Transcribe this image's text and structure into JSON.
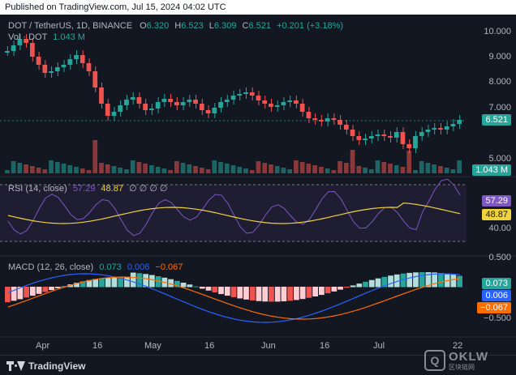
{
  "published_line": "Published on TradingView.com, Jul 15, 2024 04:02 UTC",
  "legend": {
    "symbol": "DOT / TetherUS, 1D, BINANCE",
    "open_label": "O",
    "open": "6.320",
    "high_label": "H",
    "high": "6.523",
    "low_label": "L",
    "low": "6.309",
    "close_label": "C",
    "close": "6.521",
    "change": "+0.201 (+3.18%)",
    "vol_label": "Vol · DOT",
    "vol_value": "1.043 M"
  },
  "rsi_legend": {
    "label": "RSI (14, close)",
    "value1": "57.29",
    "value2": "48.87",
    "icons": "∅ ∅ ∅ ∅"
  },
  "macd_legend": {
    "label": "MACD (12, 26, close)",
    "value1": "0.073",
    "value2": "0.006",
    "value3": "−0.067"
  },
  "price_axis": [
    "10.000",
    "9.000",
    "8.000",
    "7.000",
    "5.000"
  ],
  "rsi_axis": [
    "40.00"
  ],
  "macd_axis": [
    "0.500",
    "−0.500"
  ],
  "price_badge": "6.521",
  "volume_badge": "1.043 M",
  "rsi_badges": [
    "57.29",
    "48.87"
  ],
  "macd_badges": [
    "0.073",
    "0.006",
    "−0.067"
  ],
  "x_axis": [
    "Apr",
    "16",
    "May",
    "16",
    "Jun",
    "16",
    "Jul",
    "22"
  ],
  "footer_brand": "TradingView",
  "watermark": {
    "big": "OKLW",
    "small": "区块链网"
  },
  "colors": {
    "up": "#26a69a",
    "down": "#ef5350",
    "rsi": "#7e57c2",
    "rsi_ma": "#f0d23c",
    "macd": "#2962ff",
    "signal": "#ff6d00",
    "hist_up": "#26a69a",
    "hist_up_light": "#b2dfdb",
    "hist_down": "#ef5350",
    "hist_down_light": "#ffcdd2"
  }
}
